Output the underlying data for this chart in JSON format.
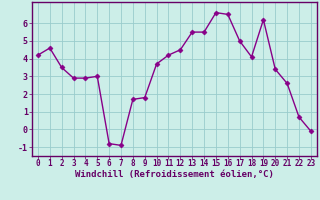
{
  "x": [
    0,
    1,
    2,
    3,
    4,
    5,
    6,
    7,
    8,
    9,
    10,
    11,
    12,
    13,
    14,
    15,
    16,
    17,
    18,
    19,
    20,
    21,
    22,
    23
  ],
  "y": [
    4.2,
    4.6,
    3.5,
    2.9,
    2.9,
    3.0,
    -0.8,
    -0.9,
    1.7,
    1.8,
    3.7,
    4.2,
    4.5,
    5.5,
    5.5,
    6.6,
    6.5,
    5.0,
    4.1,
    6.2,
    3.4,
    2.6,
    0.7,
    -0.1
  ],
  "line_color": "#880088",
  "marker": "D",
  "markersize": 2.5,
  "linewidth": 1.0,
  "xlabel": "Windchill (Refroidissement éolien,°C)",
  "xlabel_color": "#660066",
  "xlabel_fontsize": 6.5,
  "xtick_labels": [
    "0",
    "1",
    "2",
    "3",
    "4",
    "5",
    "6",
    "7",
    "8",
    "9",
    "10",
    "11",
    "12",
    "13",
    "14",
    "15",
    "16",
    "17",
    "18",
    "19",
    "20",
    "21",
    "22",
    "23"
  ],
  "ytick_values": [
    -1,
    0,
    1,
    2,
    3,
    4,
    5,
    6
  ],
  "ylim": [
    -1.5,
    7.2
  ],
  "xlim": [
    -0.5,
    23.5
  ],
  "bg_color": "#cceee8",
  "grid_color": "#99cccc",
  "tick_color": "#660066",
  "tick_fontsize": 5.5,
  "spine_color": "#660066"
}
